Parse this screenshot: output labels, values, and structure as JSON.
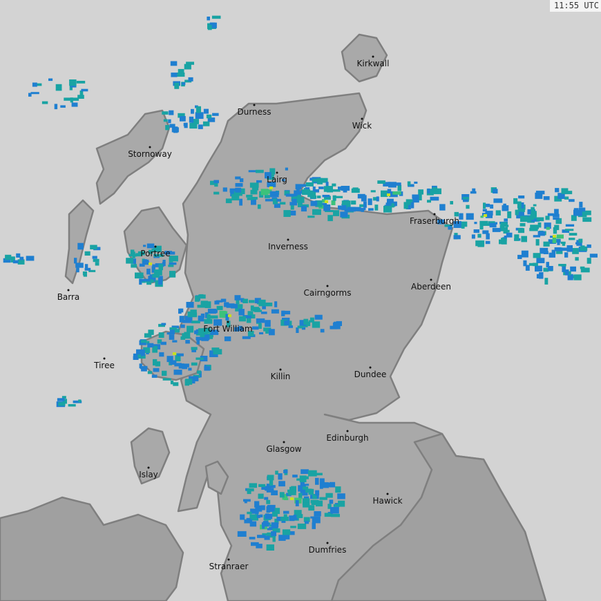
{
  "timestamp": "11:55 UTC",
  "colors": {
    "sea": "#d3d3d3",
    "land": "#a9a9a9",
    "land_outside": "#a0a0a0",
    "coast": "#7f7f7f",
    "rain_light": "#1f7fd0",
    "rain_moderate": "#19a3a3",
    "rain_heavy": "#3cc27a",
    "rain_intense": "#c8e020"
  },
  "places": [
    {
      "name": "Kirkwall"
    },
    {
      "name": "Durness"
    },
    {
      "name": "Wick"
    },
    {
      "name": "Stornoway"
    },
    {
      "name": "Lairg"
    },
    {
      "name": "Fraserburgh"
    },
    {
      "name": "Portree"
    },
    {
      "name": "Inverness"
    },
    {
      "name": "Barra"
    },
    {
      "name": "Cairngorms"
    },
    {
      "name": "Aberdeen"
    },
    {
      "name": "Fort William"
    },
    {
      "name": "Tiree"
    },
    {
      "name": "Killin"
    },
    {
      "name": "Dundee"
    },
    {
      "name": "Edinburgh"
    },
    {
      "name": "Glasgow"
    },
    {
      "name": "Islay"
    },
    {
      "name": "Hawick"
    },
    {
      "name": "Dumfries"
    },
    {
      "name": "Stranraer"
    }
  ]
}
